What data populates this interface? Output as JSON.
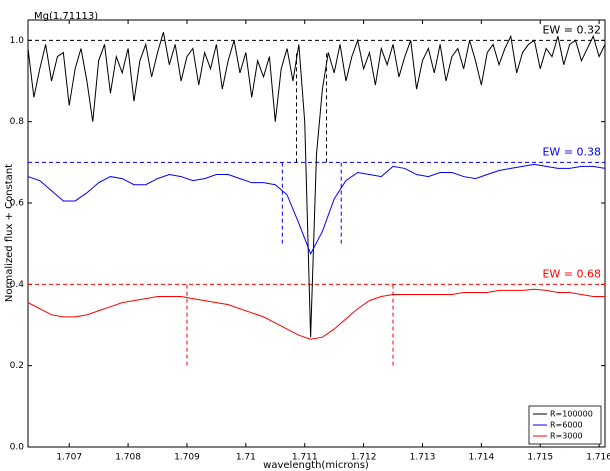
{
  "chart_data": {
    "type": "line",
    "annotation": "Mg(1.71113)",
    "xlabel": "wavelength(microns)",
    "ylabel": "Normalized flux + Constant",
    "xlim": [
      1.7063,
      1.7161
    ],
    "ylim": [
      0,
      1.05
    ],
    "xticks": [
      1.707,
      1.708,
      1.709,
      1.71,
      1.711,
      1.712,
      1.713,
      1.714,
      1.715,
      1.716
    ],
    "yticks": [
      {
        "value": 0,
        "label": "0.0"
      },
      0.2,
      0.4,
      0.6,
      0.8,
      {
        "value": 1,
        "label": "1.0"
      }
    ],
    "legend": "lower right",
    "series": [
      {
        "name": "R=100000",
        "color": "#000000",
        "x": [
          1.7063,
          1.7064,
          1.7065,
          1.7066,
          1.7067,
          1.7068,
          1.7069,
          1.707,
          1.7071,
          1.7072,
          1.7073,
          1.7074,
          1.7075,
          1.7076,
          1.7077,
          1.7078,
          1.7079,
          1.708,
          1.7081,
          1.7082,
          1.7083,
          1.7084,
          1.7085,
          1.7086,
          1.7087,
          1.7088,
          1.7089,
          1.709,
          1.7091,
          1.7092,
          1.7093,
          1.7094,
          1.7095,
          1.7096,
          1.7097,
          1.7098,
          1.7099,
          1.71,
          1.7101,
          1.7102,
          1.7103,
          1.7104,
          1.7105,
          1.7106,
          1.7107,
          1.7108,
          1.7109,
          1.711,
          1.7111,
          1.7112,
          1.7113,
          1.7114,
          1.7115,
          1.7116,
          1.7117,
          1.7118,
          1.7119,
          1.712,
          1.7121,
          1.7122,
          1.7123,
          1.7124,
          1.7125,
          1.7126,
          1.7127,
          1.7128,
          1.7129,
          1.713,
          1.7131,
          1.7132,
          1.7133,
          1.7134,
          1.7135,
          1.7136,
          1.7137,
          1.7138,
          1.7139,
          1.714,
          1.7141,
          1.7142,
          1.7143,
          1.7144,
          1.7145,
          1.7146,
          1.7147,
          1.7148,
          1.7149,
          1.715,
          1.7151,
          1.7152,
          1.7153,
          1.7154,
          1.7155,
          1.7156,
          1.7157,
          1.7158,
          1.7159,
          1.716,
          1.7161
        ],
        "values": [
          0.98,
          0.86,
          0.93,
          0.99,
          0.9,
          0.96,
          0.97,
          0.84,
          0.93,
          0.98,
          0.9,
          0.8,
          0.95,
          0.99,
          0.87,
          0.96,
          0.92,
          0.98,
          0.85,
          0.95,
          0.99,
          0.91,
          0.97,
          1.02,
          0.94,
          0.99,
          0.9,
          0.96,
          0.98,
          0.89,
          0.97,
          0.93,
          0.99,
          0.88,
          0.95,
          1.0,
          0.92,
          0.97,
          0.86,
          0.95,
          0.91,
          0.96,
          0.8,
          0.93,
          0.98,
          0.9,
          0.99,
          0.8,
          0.27,
          0.72,
          0.88,
          0.97,
          0.92,
          0.99,
          0.9,
          0.96,
          1.0,
          0.93,
          0.97,
          0.89,
          0.98,
          0.94,
          0.99,
          0.91,
          0.96,
          1.0,
          0.88,
          0.95,
          0.98,
          0.92,
          0.99,
          0.9,
          0.96,
          0.98,
          0.93,
          1.0,
          0.95,
          0.89,
          0.97,
          0.99,
          0.94,
          0.98,
          1.01,
          0.92,
          0.97,
          0.99,
          1.0,
          0.93,
          0.98,
          0.96,
          1.01,
          0.94,
          0.99,
          1.0,
          0.95,
          0.98,
          1.01,
          0.96,
          0.99
        ]
      },
      {
        "name": "R=6000",
        "color": "#0000ff",
        "x": [
          1.7063,
          1.7065,
          1.7067,
          1.7069,
          1.7071,
          1.7073,
          1.7075,
          1.7077,
          1.7079,
          1.7081,
          1.7083,
          1.7085,
          1.7087,
          1.7089,
          1.7091,
          1.7093,
          1.7095,
          1.7097,
          1.7099,
          1.7101,
          1.7103,
          1.7105,
          1.7107,
          1.7109,
          1.7111,
          1.7113,
          1.7115,
          1.7117,
          1.7119,
          1.7121,
          1.7123,
          1.7125,
          1.7127,
          1.7129,
          1.7131,
          1.7133,
          1.7135,
          1.7137,
          1.7139,
          1.7141,
          1.7143,
          1.7145,
          1.7147,
          1.7149,
          1.7151,
          1.7153,
          1.7155,
          1.7157,
          1.7159,
          1.7161
        ],
        "values": [
          0.665,
          0.655,
          0.63,
          0.605,
          0.605,
          0.625,
          0.65,
          0.665,
          0.66,
          0.645,
          0.645,
          0.66,
          0.67,
          0.665,
          0.655,
          0.66,
          0.67,
          0.67,
          0.66,
          0.65,
          0.65,
          0.645,
          0.62,
          0.55,
          0.475,
          0.53,
          0.61,
          0.655,
          0.675,
          0.67,
          0.665,
          0.69,
          0.685,
          0.67,
          0.665,
          0.675,
          0.675,
          0.665,
          0.66,
          0.67,
          0.68,
          0.685,
          0.69,
          0.695,
          0.69,
          0.685,
          0.685,
          0.69,
          0.69,
          0.685
        ]
      },
      {
        "name": "R=3000",
        "color": "#ff0000",
        "x": [
          1.7063,
          1.7065,
          1.7067,
          1.7069,
          1.7071,
          1.7073,
          1.7075,
          1.7077,
          1.7079,
          1.7081,
          1.7083,
          1.7085,
          1.7087,
          1.7089,
          1.7091,
          1.7093,
          1.7095,
          1.7097,
          1.7099,
          1.7101,
          1.7103,
          1.7105,
          1.7107,
          1.7109,
          1.7111,
          1.7113,
          1.7115,
          1.7117,
          1.7119,
          1.7121,
          1.7123,
          1.7125,
          1.7127,
          1.7129,
          1.7131,
          1.7133,
          1.7135,
          1.7137,
          1.7139,
          1.7141,
          1.7143,
          1.7145,
          1.7147,
          1.7149,
          1.7151,
          1.7153,
          1.7155,
          1.7157,
          1.7159,
          1.7161
        ],
        "values": [
          0.355,
          0.34,
          0.325,
          0.32,
          0.32,
          0.325,
          0.335,
          0.345,
          0.355,
          0.36,
          0.365,
          0.37,
          0.37,
          0.37,
          0.365,
          0.36,
          0.355,
          0.35,
          0.34,
          0.33,
          0.32,
          0.305,
          0.29,
          0.275,
          0.265,
          0.27,
          0.29,
          0.315,
          0.34,
          0.36,
          0.37,
          0.375,
          0.375,
          0.375,
          0.375,
          0.375,
          0.375,
          0.38,
          0.38,
          0.38,
          0.385,
          0.385,
          0.385,
          0.388,
          0.385,
          0.38,
          0.38,
          0.375,
          0.37,
          0.37
        ]
      }
    ],
    "hlines": [
      {
        "value": 1.0,
        "color": "#000000",
        "label": "EW = 0.32"
      },
      {
        "value": 0.7,
        "color": "#0000ff",
        "label": "EW = 0.38"
      },
      {
        "value": 0.4,
        "color": "#ff0000",
        "label": "EW = 0.68"
      }
    ],
    "vlines": [
      {
        "x": 1.71086,
        "y": [
          0.7,
          0.97
        ],
        "color": "#000000"
      },
      {
        "x": 1.71137,
        "y": [
          0.7,
          0.97
        ],
        "color": "#000000"
      },
      {
        "x": 1.71062,
        "y": [
          0.5,
          0.7
        ],
        "color": "#0000ff"
      },
      {
        "x": 1.71162,
        "y": [
          0.5,
          0.7
        ],
        "color": "#0000ff"
      },
      {
        "x": 1.709,
        "y": [
          0.2,
          0.4
        ],
        "color": "#ff0000"
      },
      {
        "x": 1.7125,
        "y": [
          0.2,
          0.4
        ],
        "color": "#ff0000"
      }
    ]
  }
}
